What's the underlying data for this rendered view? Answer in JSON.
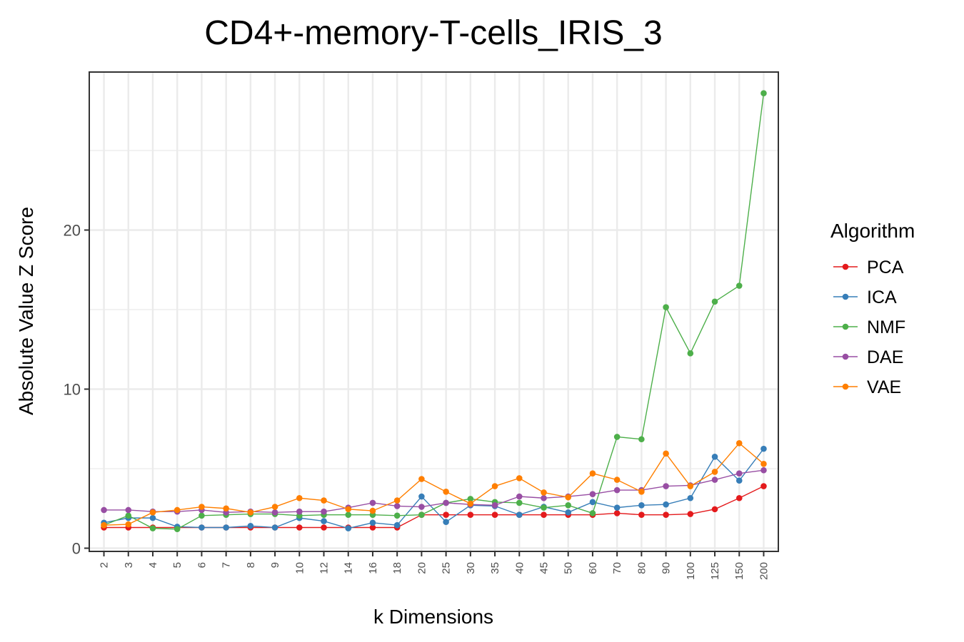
{
  "chart_data": {
    "type": "line",
    "title": "CD4+-memory-T-cells_IRIS_3",
    "xlabel": "k Dimensions",
    "ylabel": "Absolute Value Z Score",
    "categories": [
      "2",
      "3",
      "4",
      "5",
      "6",
      "7",
      "8",
      "9",
      "10",
      "12",
      "14",
      "16",
      "18",
      "20",
      "25",
      "30",
      "35",
      "40",
      "45",
      "50",
      "60",
      "70",
      "80",
      "90",
      "100",
      "125",
      "150",
      "200"
    ],
    "ylim": [
      0,
      29
    ],
    "yticks": [
      0,
      10,
      20
    ],
    "grid": true,
    "legend": {
      "title": "Algorithm",
      "position": "right"
    },
    "series": [
      {
        "name": "PCA",
        "color": "#e41a1c",
        "values": [
          1.3,
          1.3,
          1.3,
          1.3,
          1.3,
          1.3,
          1.3,
          1.3,
          1.3,
          1.3,
          1.3,
          1.3,
          1.3,
          2.1,
          2.1,
          2.1,
          2.1,
          2.1,
          2.1,
          2.1,
          2.1,
          2.2,
          2.1,
          2.1,
          2.15,
          2.45,
          3.15,
          3.9
        ]
      },
      {
        "name": "ICA",
        "color": "#377eb8",
        "values": [
          1.6,
          1.9,
          1.9,
          1.35,
          1.3,
          1.3,
          1.4,
          1.3,
          1.9,
          1.7,
          1.25,
          1.6,
          1.45,
          3.25,
          1.65,
          2.7,
          2.65,
          2.1,
          2.6,
          2.25,
          2.9,
          2.55,
          2.7,
          2.75,
          3.15,
          5.75,
          4.25,
          6.25
        ]
      },
      {
        "name": "NMF",
        "color": "#4daf4a",
        "values": [
          1.45,
          2.05,
          1.25,
          1.2,
          2.05,
          2.1,
          2.15,
          2.15,
          2.05,
          2.1,
          2.1,
          2.1,
          2.05,
          2.1,
          2.85,
          3.1,
          2.9,
          2.85,
          2.55,
          2.7,
          2.2,
          7.0,
          6.85,
          15.15,
          12.25,
          15.5,
          16.5,
          28.6
        ]
      },
      {
        "name": "DAE",
        "color": "#984ea3",
        "values": [
          2.4,
          2.4,
          2.3,
          2.3,
          2.4,
          2.25,
          2.3,
          2.25,
          2.3,
          2.3,
          2.55,
          2.85,
          2.65,
          2.6,
          2.85,
          2.75,
          2.7,
          3.25,
          3.15,
          3.25,
          3.4,
          3.65,
          3.65,
          3.9,
          3.95,
          4.3,
          4.7,
          4.9
        ]
      },
      {
        "name": "VAE",
        "color": "#ff7f00",
        "values": [
          1.45,
          1.5,
          2.25,
          2.4,
          2.6,
          2.5,
          2.25,
          2.6,
          3.15,
          3.0,
          2.45,
          2.35,
          3.0,
          4.35,
          3.55,
          2.8,
          3.9,
          4.4,
          3.5,
          3.2,
          4.7,
          4.3,
          3.55,
          5.95,
          3.9,
          4.8,
          6.6,
          5.3
        ]
      }
    ]
  }
}
